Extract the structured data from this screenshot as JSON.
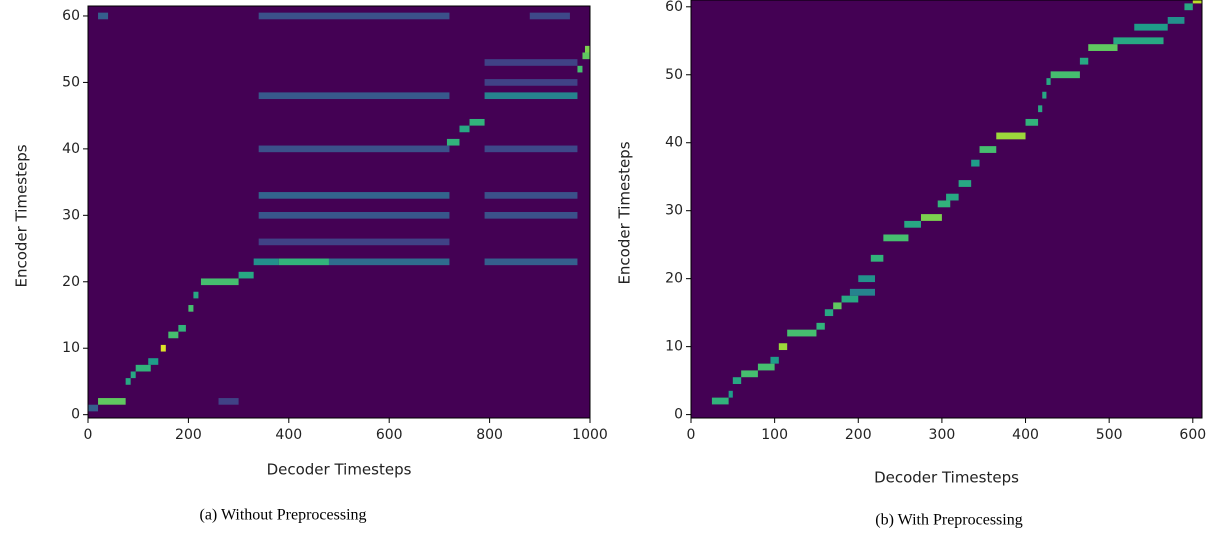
{
  "chart_data": [
    {
      "type": "heatmap",
      "colormap": "viridis",
      "x_label": "Decoder Timesteps",
      "y_label": "Encoder Timesteps",
      "caption": "(a) Without Preprocessing",
      "xlim": [
        0,
        1000
      ],
      "ylim": [
        -0.5,
        61.5
      ],
      "xticks": [
        0,
        200,
        400,
        600,
        800,
        1000
      ],
      "yticks": [
        0,
        10,
        20,
        30,
        40,
        50,
        60
      ],
      "cells": {
        "x_start": [
          0,
          20,
          75,
          85,
          95,
          120,
          145,
          160,
          180,
          200,
          210,
          225,
          300,
          330,
          380,
          480,
          715,
          740,
          760,
          790,
          975,
          985,
          990,
          340,
          340,
          340,
          340,
          340,
          340,
          790,
          790,
          790,
          790,
          880,
          790,
          790,
          20,
          260
        ],
        "x_end": [
          20,
          75,
          85,
          95,
          125,
          140,
          155,
          180,
          195,
          210,
          220,
          300,
          330,
          380,
          480,
          720,
          740,
          760,
          790,
          975,
          985,
          1000,
          1000,
          720,
          720,
          720,
          720,
          720,
          720,
          975,
          975,
          975,
          975,
          960,
          975,
          975,
          40,
          300
        ],
        "y": [
          1,
          2,
          5,
          6,
          7,
          8,
          10,
          12,
          13,
          16,
          18,
          20,
          21,
          23,
          23,
          23,
          41,
          43,
          44,
          48,
          52,
          54,
          55,
          60,
          48,
          40,
          33,
          30,
          26,
          23,
          33,
          30,
          40,
          60,
          53,
          50,
          60,
          2
        ],
        "values": [
          0.3,
          0.75,
          0.6,
          0.6,
          0.65,
          0.55,
          0.95,
          0.7,
          0.65,
          0.7,
          0.6,
          0.7,
          0.6,
          0.5,
          0.65,
          0.35,
          0.65,
          0.6,
          0.65,
          0.45,
          0.7,
          0.75,
          0.8,
          0.25,
          0.28,
          0.25,
          0.32,
          0.27,
          0.2,
          0.3,
          0.25,
          0.25,
          0.22,
          0.22,
          0.2,
          0.2,
          0.3,
          0.2
        ]
      }
    },
    {
      "type": "heatmap",
      "colormap": "viridis",
      "x_label": "Decoder Timesteps",
      "y_label": "Encoder Timesteps",
      "caption": "(b) With Preprocessing",
      "xlim": [
        0,
        611
      ],
      "ylim": [
        -0.5,
        61
      ],
      "xticks": [
        0,
        100,
        200,
        300,
        400,
        500,
        600
      ],
      "yticks": [
        0,
        10,
        20,
        30,
        40,
        50,
        60
      ],
      "cells": {
        "x_start": [
          25,
          45,
          50,
          60,
          80,
          95,
          105,
          115,
          150,
          160,
          170,
          180,
          190,
          200,
          215,
          230,
          255,
          275,
          295,
          305,
          320,
          335,
          345,
          365,
          400,
          415,
          420,
          425,
          430,
          465,
          475,
          505,
          530,
          570,
          590,
          600
        ],
        "x_end": [
          45,
          50,
          60,
          80,
          100,
          105,
          115,
          150,
          160,
          170,
          180,
          200,
          220,
          220,
          230,
          260,
          275,
          300,
          310,
          320,
          335,
          345,
          365,
          400,
          415,
          420,
          425,
          430,
          465,
          475,
          510,
          565,
          570,
          590,
          600,
          611
        ],
        "y": [
          2,
          3,
          5,
          6,
          7,
          8,
          10,
          12,
          13,
          15,
          16,
          17,
          18,
          20,
          23,
          26,
          28,
          29,
          31,
          32,
          34,
          37,
          39,
          41,
          43,
          45,
          47,
          49,
          50,
          52,
          54,
          55,
          57,
          58,
          60,
          61
        ],
        "values": [
          0.65,
          0.55,
          0.6,
          0.7,
          0.7,
          0.55,
          0.85,
          0.7,
          0.65,
          0.6,
          0.75,
          0.6,
          0.45,
          0.5,
          0.65,
          0.7,
          0.6,
          0.8,
          0.65,
          0.6,
          0.6,
          0.55,
          0.7,
          0.85,
          0.65,
          0.6,
          0.6,
          0.6,
          0.7,
          0.6,
          0.75,
          0.6,
          0.55,
          0.5,
          0.6,
          0.9
        ]
      }
    }
  ]
}
